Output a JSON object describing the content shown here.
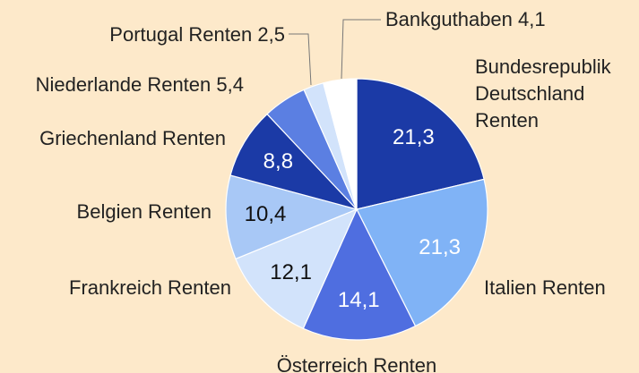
{
  "chart_data": {
    "type": "pie",
    "categories": [
      "Bundesrepublik Deutschland Renten",
      "Italien Renten",
      "Österreich Renten",
      "Frankreich Renten",
      "Belgien Renten",
      "Griechenland Renten",
      "Niederlande Renten",
      "Portugal Renten",
      "Bankguthaben"
    ],
    "values": [
      21.3,
      21.3,
      14.1,
      12.1,
      10.4,
      8.8,
      5.4,
      2.5,
      4.1
    ],
    "value_labels": [
      "21,3",
      "21,3",
      "14,1",
      "12,1",
      "10,4",
      "8,8",
      "5,4",
      "2,5",
      "4,1"
    ],
    "colors": [
      "#1b3aa6",
      "#80b3f6",
      "#4f6ee0",
      "#d2e3fb",
      "#a8c8f6",
      "#1b3aa6",
      "#5b7fe2",
      "#d2e3fb",
      "#ffffff"
    ],
    "background": "#fde9ca"
  }
}
